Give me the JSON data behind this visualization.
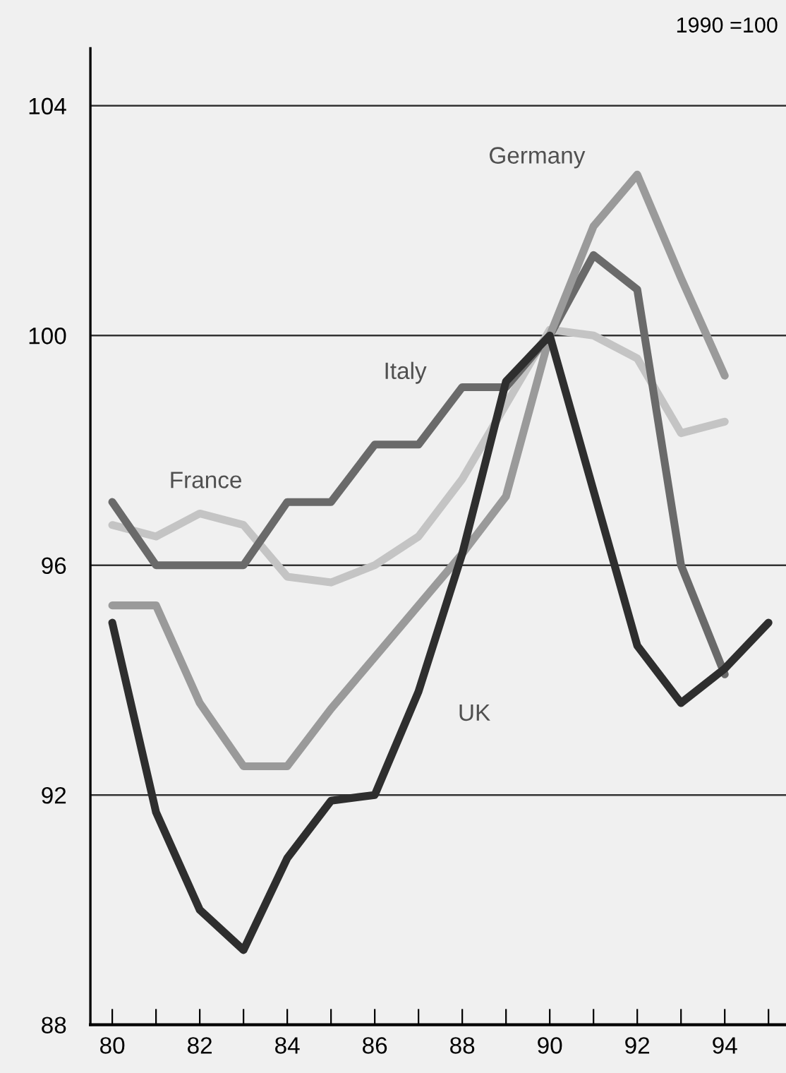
{
  "chart_data": {
    "type": "line",
    "annotations": [
      "1990 =100"
    ],
    "x": [
      80,
      81,
      82,
      83,
      84,
      85,
      86,
      87,
      88,
      89,
      90,
      91,
      92,
      93,
      94,
      95
    ],
    "series": [
      {
        "name": "France",
        "color": "#c4c4c4",
        "values": [
          96.7,
          96.5,
          96.9,
          96.7,
          95.8,
          95.7,
          96.0,
          96.5,
          97.5,
          98.8,
          100.1,
          100.0,
          99.6,
          98.3,
          98.5,
          null
        ]
      },
      {
        "name": "Italy",
        "color": "#6a6a6a",
        "values": [
          97.1,
          96.0,
          96.0,
          96.0,
          97.1,
          97.1,
          98.1,
          98.1,
          99.1,
          99.1,
          100.0,
          101.4,
          100.8,
          96.0,
          94.1,
          null
        ]
      },
      {
        "name": "Germany",
        "color": "#9a9a9a",
        "values": [
          95.3,
          95.3,
          93.6,
          92.5,
          92.5,
          93.5,
          94.4,
          95.3,
          96.2,
          97.2,
          100.0,
          101.9,
          102.8,
          101.0,
          99.3,
          null
        ]
      },
      {
        "name": "UK",
        "color": "#2e2e2e",
        "values": [
          95.0,
          91.7,
          90.0,
          89.3,
          90.9,
          91.9,
          92.0,
          93.8,
          96.2,
          99.2,
          100.0,
          97.3,
          94.6,
          93.6,
          94.2,
          95.0
        ]
      }
    ],
    "xlim": [
      79.5,
      95.4
    ],
    "ylim": [
      88,
      105
    ],
    "xticks": [
      80,
      {
        "value": 81,
        "label": null
      },
      82,
      {
        "value": 83,
        "label": null
      },
      84,
      {
        "value": 85,
        "label": null
      },
      86,
      {
        "value": 87,
        "label": null
      },
      88,
      {
        "value": 89,
        "label": null
      },
      90,
      {
        "value": 91,
        "label": null
      },
      92,
      {
        "value": 93,
        "label": null
      },
      94,
      {
        "value": 95,
        "label": null
      }
    ],
    "yticks": [
      88,
      92,
      96,
      100,
      104
    ],
    "grid": "y",
    "legend": false,
    "marker": "none",
    "line_style": "solid"
  }
}
